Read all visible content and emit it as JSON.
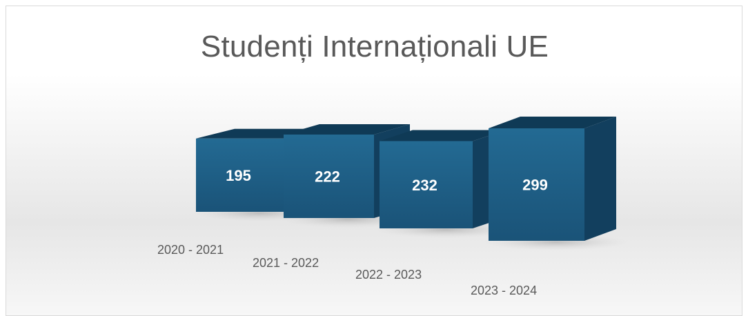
{
  "chart_data": {
    "type": "bar",
    "title": "Studenți Internaționali UE",
    "categories": [
      "2020 - 2021",
      "2021 - 2022",
      "2022 - 2023",
      "2023 - 2024"
    ],
    "values": [
      195,
      222,
      232,
      299
    ],
    "data_labels": [
      "195",
      "222",
      "232",
      "299"
    ],
    "xlabel": "",
    "ylabel": "",
    "grid": false,
    "legend": "none",
    "style": "3d-box",
    "colors": {
      "front": "#1f5f86",
      "side": "#123f5e",
      "top": "#0f3a56",
      "label": "#ffffff"
    }
  }
}
